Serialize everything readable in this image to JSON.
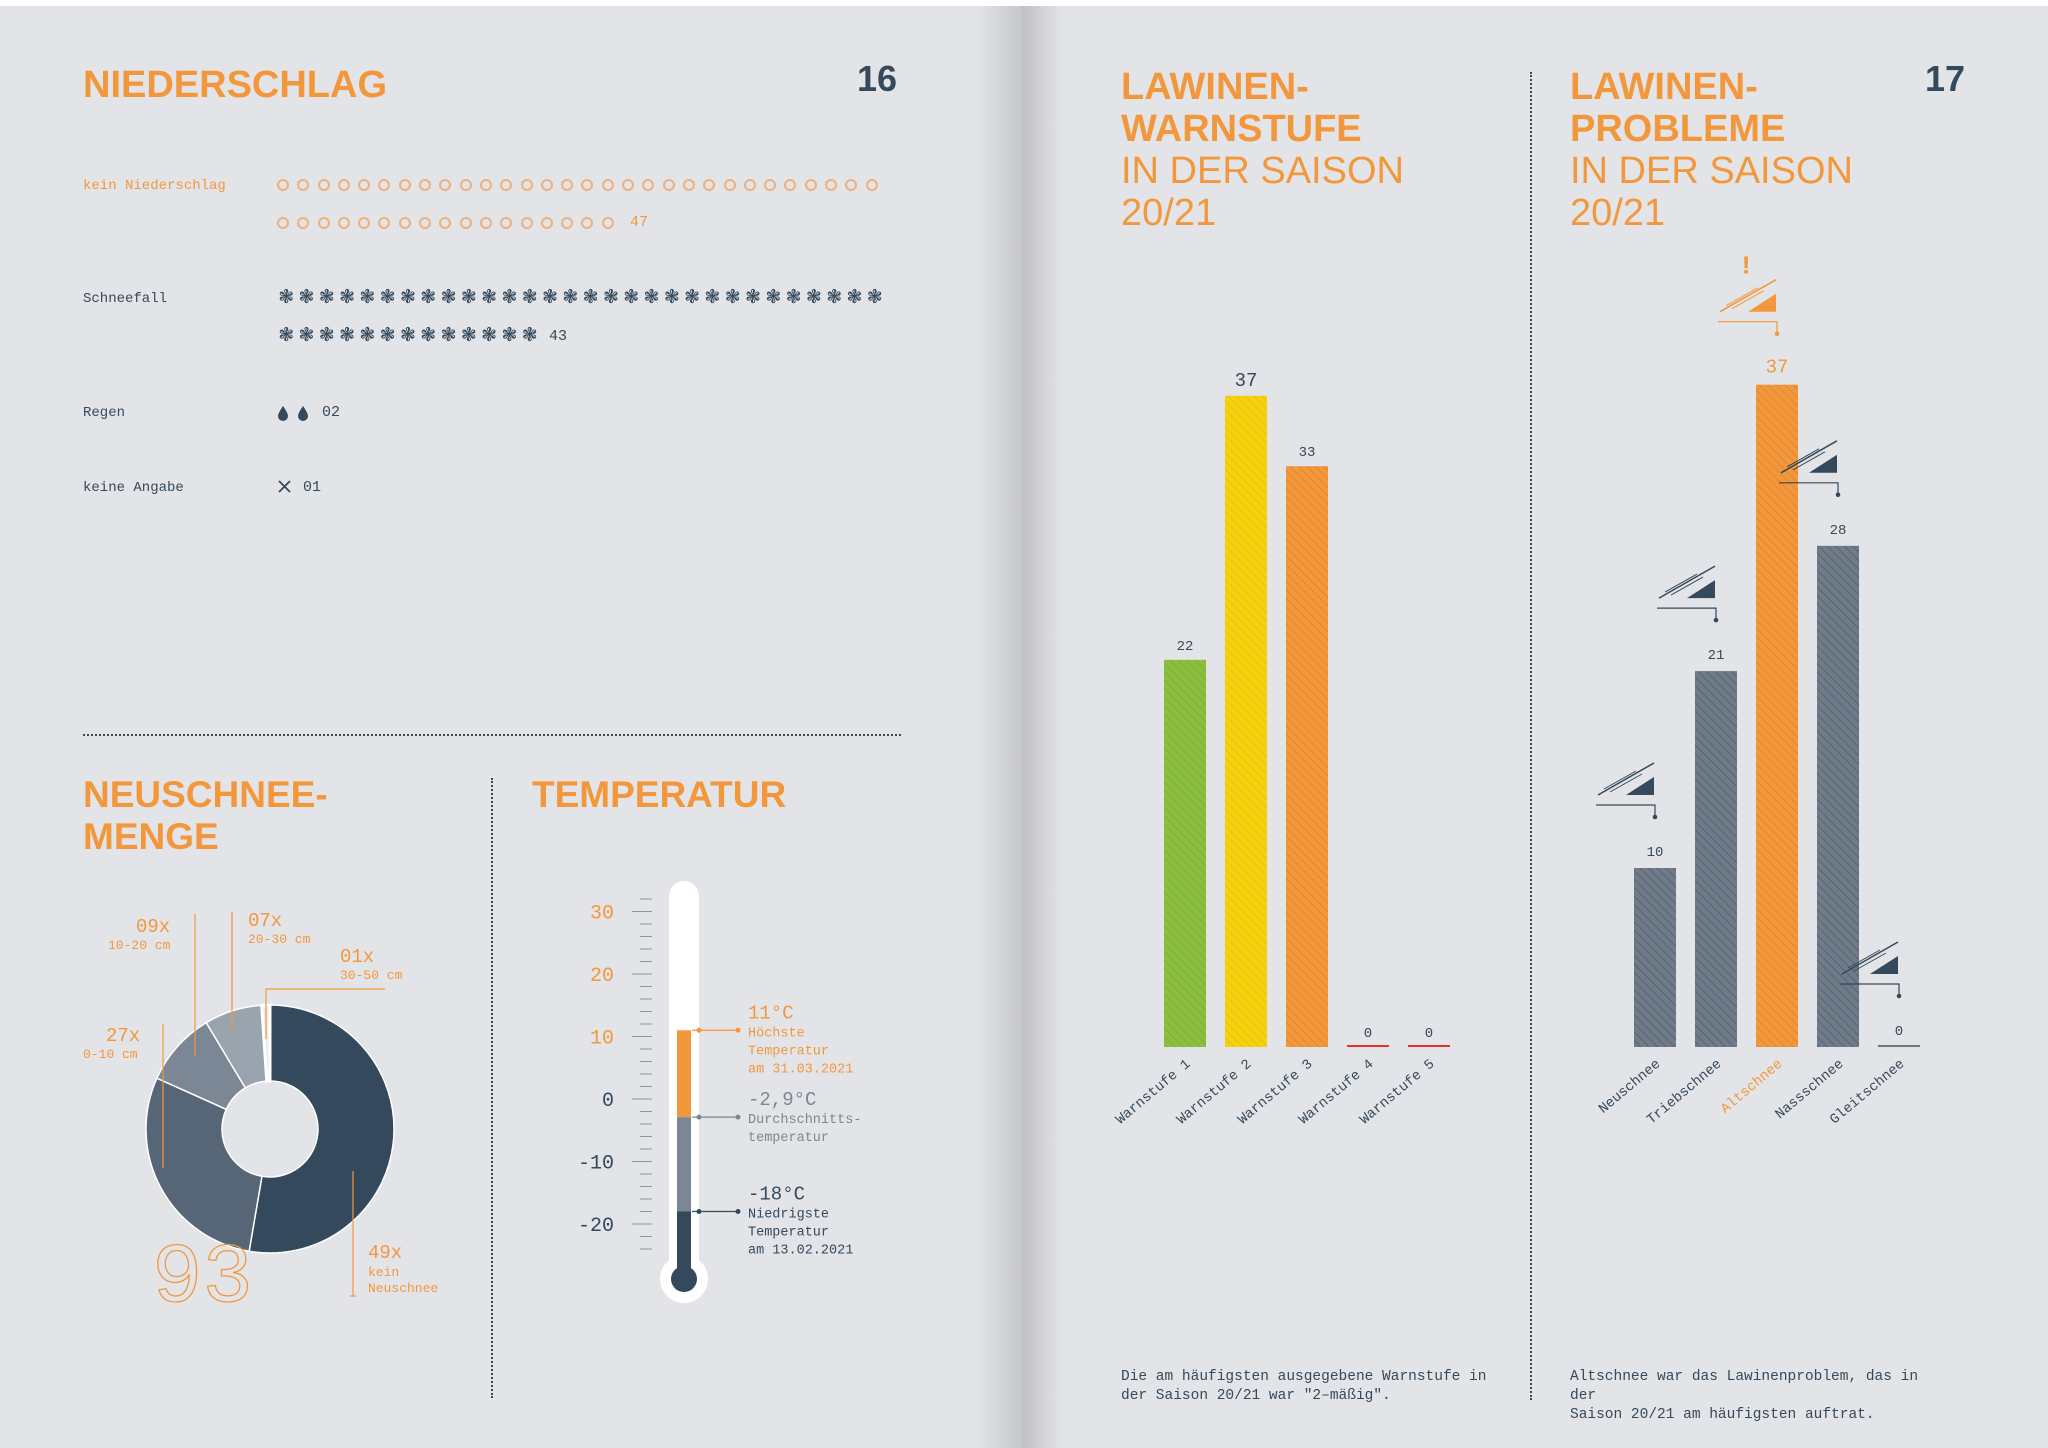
{
  "left_page": {
    "title": "NIEDERSCHLAG",
    "page_number": "16",
    "precipitation": {
      "no_precip": {
        "label": "kein Niederschlag",
        "count": "47",
        "value": 47
      },
      "snowfall": {
        "label": "Schneefall",
        "count": "43",
        "value": 43
      },
      "rain": {
        "label": "Regen",
        "count": "02",
        "value": 2
      },
      "no_info": {
        "label": "keine Angabe",
        "count": "01",
        "value": 1
      }
    },
    "new_snow": {
      "title_line1": "NEUSCHNEE-",
      "title_line2": "MENGE",
      "total": "93"
    },
    "temperature": {
      "title": "TEMPERATUR",
      "max": {
        "value": "11°C",
        "line1": "Höchste",
        "line2": "Temperatur",
        "line3": "am 31.03.2021"
      },
      "avg": {
        "value": "-2,9°C",
        "line1": "Durchschnitts-",
        "line2": "temperatur"
      },
      "min": {
        "value": "-18°C",
        "line1": "Niedrigste",
        "line2": "Temperatur",
        "line3": "am 13.02.2021"
      }
    }
  },
  "right_page": {
    "page_number": "17",
    "warn": {
      "title_line1": "LAWINEN-",
      "title_line2": "WARNSTUFE",
      "sub_line1": "IN DER SAISON",
      "sub_line2": "20/21",
      "caption_line1": "Die am häufigsten ausgegebene Warnstufe in",
      "caption_line2": "der Saison 20/21 war \"2–mäßig\"."
    },
    "problems": {
      "title_line1": "LAWINEN-",
      "title_line2": "PROBLEME",
      "sub_line1": "IN DER SAISON",
      "sub_line2": "20/21",
      "caption_line1": "Altschnee war das Lawinenproblem, das in der",
      "caption_line2": "Saison 20/21 am häufigsten auftrat."
    }
  },
  "colors": {
    "orange": "#f3973c",
    "slate": "#34495b",
    "green": "#8bbd3f",
    "yellow": "#f5d10f",
    "red": "#e4312b",
    "grey_bar": "#6f7b88",
    "paper": "#e3e4e8"
  },
  "chart_data": [
    {
      "type": "pie",
      "title": "NEUSCHNEE-MENGE",
      "total": 93,
      "slices": [
        {
          "count": 49,
          "label": "49x",
          "desc": "kein Neuschnee"
        },
        {
          "count": 27,
          "label": "27x",
          "desc": "0-10 cm"
        },
        {
          "count": 9,
          "label": "09x",
          "desc": "10-20 cm"
        },
        {
          "count": 7,
          "label": "07x",
          "desc": "20-30 cm"
        },
        {
          "count": 1,
          "label": "01x",
          "desc": "30-50 cm"
        }
      ]
    },
    {
      "type": "bar",
      "title": "TEMPERATUR",
      "yticks": [
        "30",
        "20",
        "10",
        "0",
        "-10",
        "-20"
      ],
      "ylim": [
        -25,
        35
      ],
      "values": {
        "max": 11,
        "avg": -2.9,
        "min": -18
      }
    },
    {
      "type": "bar",
      "title": "LAWINEN-WARNSTUFE",
      "categories": [
        "Warnstufe 1",
        "Warnstufe 2",
        "Warnstufe 3",
        "Warnstufe 4",
        "Warnstufe 5"
      ],
      "values": [
        22,
        37,
        33,
        0,
        0
      ],
      "labels": [
        "22",
        "37",
        "33",
        "0",
        "0"
      ]
    },
    {
      "type": "bar",
      "title": "LAWINEN-PROBLEME",
      "categories": [
        "Neuschnee",
        "Triebschnee",
        "Altschnee",
        "Nassschnee",
        "Gleitschnee"
      ],
      "values": [
        10,
        21,
        37,
        28,
        0
      ],
      "labels": [
        "10",
        "21",
        "37",
        "28",
        "0"
      ]
    }
  ]
}
